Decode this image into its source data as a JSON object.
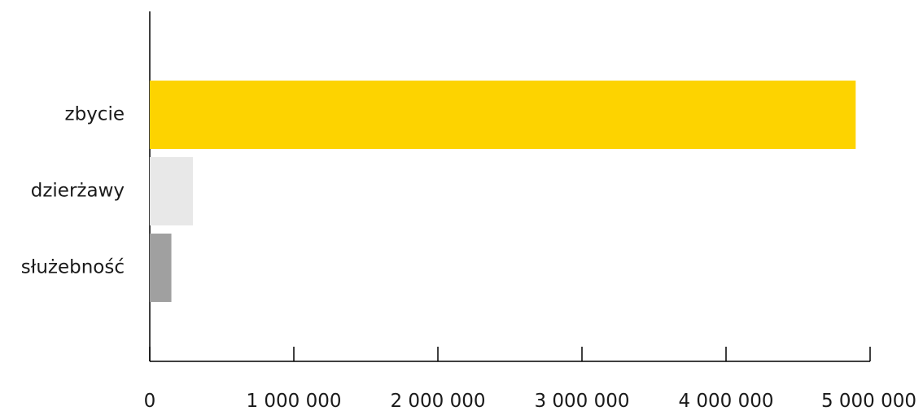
{
  "chart_data": {
    "type": "bar",
    "orientation": "horizontal",
    "categories": [
      "zbycie",
      "dzierżawy",
      "służebność"
    ],
    "values": [
      4900000,
      300000,
      150000
    ],
    "colors": [
      "#fdd300",
      "#e8e8e8",
      "#a0a0a0"
    ],
    "xlim": [
      0,
      5000000
    ],
    "x_ticks": [
      0,
      1000000,
      2000000,
      3000000,
      4000000,
      5000000
    ],
    "x_tick_labels": [
      "0",
      "1 000 000",
      "2 000 000",
      "3 000 000",
      "4 000 000",
      "5 000 000"
    ],
    "title": "",
    "xlabel": "",
    "ylabel": "",
    "grid": false,
    "legend": "none"
  }
}
